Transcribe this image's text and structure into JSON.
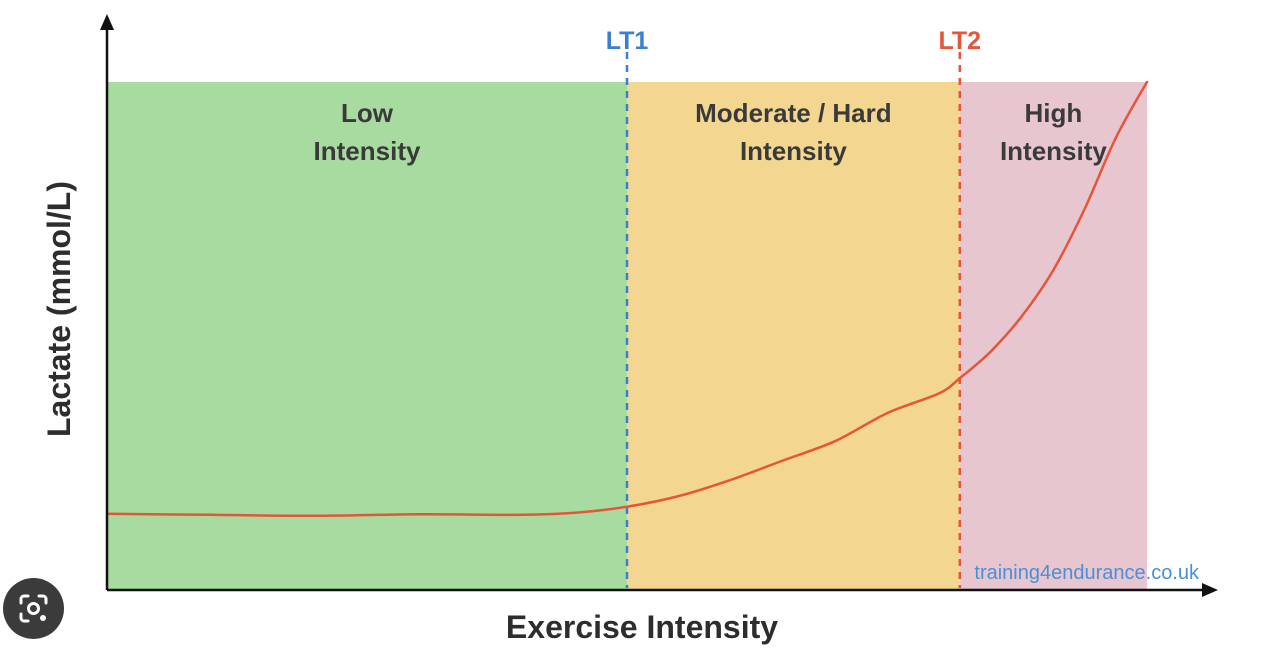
{
  "chart_data": {
    "type": "area",
    "title": "",
    "xlabel": "Exercise Intensity",
    "ylabel": "Lactate (mmol/L)",
    "xlim": [
      0,
      100
    ],
    "ylim": [
      0,
      100
    ],
    "grid": false,
    "zones": [
      {
        "label_line1": "Low",
        "label_line2": "Intensity",
        "x_start": 0,
        "x_end": 50,
        "color": "#a8dba0"
      },
      {
        "label_line1": "Moderate / Hard",
        "label_line2": "Intensity",
        "x_start": 50,
        "x_end": 82,
        "color": "#f3d68f"
      },
      {
        "label_line1": "High",
        "label_line2": "Intensity",
        "x_start": 82,
        "x_end": 100,
        "color": "#e7c6d0"
      }
    ],
    "thresholds": [
      {
        "label": "LT1",
        "x": 50,
        "color": "#3a7fd0"
      },
      {
        "label": "LT2",
        "x": 82,
        "color": "#e5553a"
      }
    ],
    "series": [
      {
        "name": "Lactate",
        "color": "#e5553a",
        "x": [
          0,
          10,
          20,
          30,
          40,
          45,
          50,
          55,
          60,
          65,
          70,
          75,
          80,
          82,
          85,
          88,
          91,
          94,
          97,
          100
        ],
        "y": [
          15,
          14.8,
          14.6,
          14.9,
          14.8,
          15.2,
          16.4,
          18.5,
          21.7,
          25.5,
          29.3,
          34.8,
          38.7,
          41.7,
          47,
          54,
          63,
          75,
          89,
          100
        ]
      }
    ]
  },
  "watermark": {
    "text": "training4endurance.co.uk",
    "color": "#4a8fd8"
  },
  "lens_button": {
    "icon": "lens-search-icon",
    "color": "#3b3b3b"
  }
}
